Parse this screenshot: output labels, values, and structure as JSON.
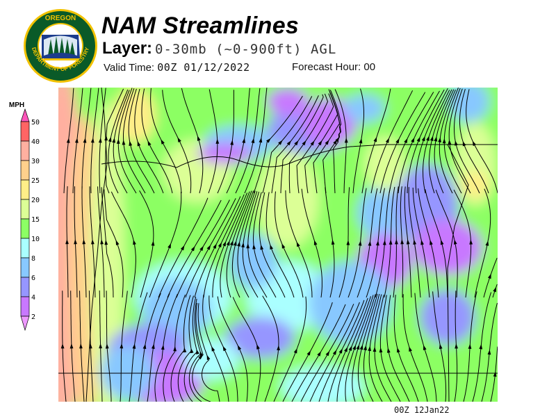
{
  "header": {
    "title": "NAM Streamlines",
    "layer_label": "Layer:",
    "layer_value": "0-30mb (~0-900ft) AGL",
    "valid_label": "Valid Time:",
    "valid_value": "00Z 01/12/2022",
    "forecast_label": "Forecast Hour:",
    "forecast_value": "00"
  },
  "logo": {
    "text_top": "OREGON",
    "text_bottom": "DEPARTMENT OF FORESTRY"
  },
  "legend": {
    "unit": "MPH",
    "bins": [
      {
        "label": "50",
        "color": "#ff55bb"
      },
      {
        "label": "40",
        "color": "#ff6464"
      },
      {
        "label": "30",
        "color": "#ffb0a0"
      },
      {
        "label": "25",
        "color": "#ffd08c"
      },
      {
        "label": "20",
        "color": "#ffee88"
      },
      {
        "label": "15",
        "color": "#dcff96"
      },
      {
        "label": "10",
        "color": "#8cff64"
      },
      {
        "label": "8",
        "color": "#aaffff"
      },
      {
        "label": "6",
        "color": "#88c8ff"
      },
      {
        "label": "4",
        "color": "#9696ff"
      },
      {
        "label": "2",
        "color": "#c878ff"
      }
    ],
    "below_color": "#ee99ff"
  },
  "footer": {
    "timestamp": "00Z 12Jan22"
  }
}
